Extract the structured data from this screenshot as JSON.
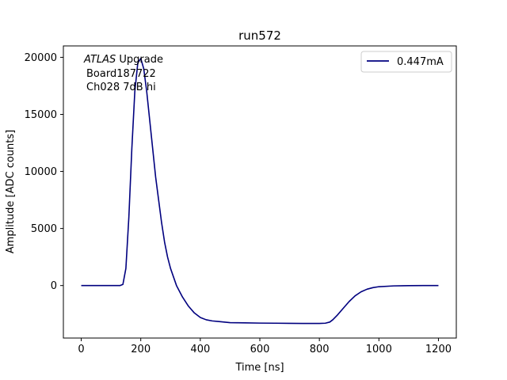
{
  "chart_data": {
    "type": "line",
    "title": "run572",
    "xlabel": "Time [ns]",
    "ylabel": "Amplitude [ADC counts]",
    "xlim": [
      -60,
      1260
    ],
    "ylim": [
      -4600,
      21000
    ],
    "x_ticks": [
      0,
      200,
      400,
      600,
      800,
      1000,
      1200
    ],
    "y_ticks": [
      0,
      5000,
      10000,
      15000,
      20000
    ],
    "grid": false,
    "legend_position": "top-right",
    "series": [
      {
        "name": "0.447mA",
        "color": "#00007f",
        "x": [
          0,
          100,
          130,
          140,
          150,
          160,
          170,
          180,
          190,
          200,
          210,
          220,
          230,
          240,
          250,
          260,
          270,
          280,
          290,
          300,
          320,
          340,
          360,
          380,
          400,
          420,
          440,
          460,
          480,
          500,
          550,
          600,
          650,
          700,
          750,
          800,
          820,
          835,
          845,
          860,
          880,
          900,
          920,
          940,
          960,
          980,
          1000,
          1050,
          1100,
          1150,
          1200
        ],
        "y": [
          0,
          0,
          0,
          100,
          1500,
          6000,
          12000,
          17000,
          19500,
          19900,
          19000,
          17000,
          14500,
          12000,
          9500,
          7500,
          5500,
          3800,
          2500,
          1500,
          0,
          -1000,
          -1800,
          -2400,
          -2800,
          -3000,
          -3100,
          -3150,
          -3200,
          -3250,
          -3270,
          -3290,
          -3300,
          -3310,
          -3320,
          -3320,
          -3300,
          -3200,
          -3000,
          -2600,
          -2000,
          -1400,
          -900,
          -550,
          -320,
          -180,
          -100,
          -30,
          -10,
          0,
          0
        ]
      }
    ],
    "annotation": {
      "line1_italic": "ATLAS",
      "line1_rest": " Upgrade",
      "line2": "Board187722",
      "line3": "Ch028 7dB hi"
    }
  }
}
